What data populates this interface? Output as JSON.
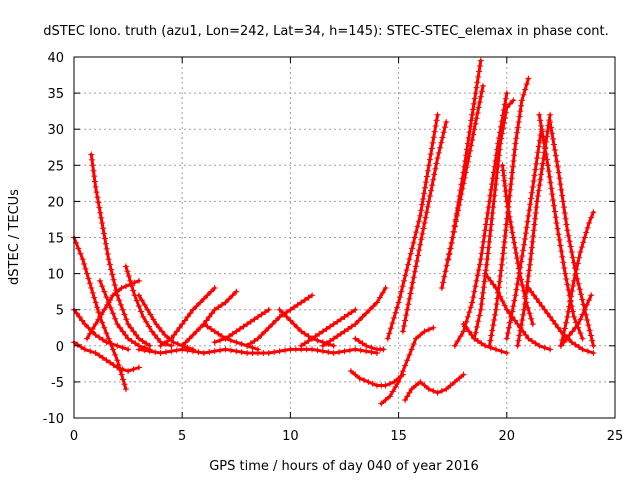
{
  "chart_data": {
    "type": "scatter",
    "title": "dSTEC Iono. truth (azu1, Lon=242, Lat=34, h=145): STEC-STEC_elemax in phase cont.",
    "xlabel": "GPS time / hours of day 040 of year 2016",
    "ylabel": "dSTEC  / TECUs",
    "xlim": [
      0,
      25
    ],
    "ylim": [
      -10,
      40
    ],
    "xticks": [
      0,
      5,
      10,
      15,
      20,
      25
    ],
    "yticks": [
      -10,
      -5,
      0,
      5,
      10,
      15,
      20,
      25,
      30,
      35,
      40
    ],
    "grid": true,
    "marker": "plus",
    "color": "#ff0000",
    "series": [
      {
        "x": [
          0.0,
          0.4,
          0.8,
          1.2,
          1.6,
          2.0,
          2.4
        ],
        "y": [
          15,
          12,
          8,
          4,
          1,
          -2,
          -6
        ]
      },
      {
        "x": [
          0.0,
          0.5,
          1.0,
          1.5,
          2.0,
          2.5
        ],
        "y": [
          5,
          3,
          1.5,
          0.5,
          0,
          -0.5
        ]
      },
      {
        "x": [
          0.0,
          0.5,
          1.0,
          1.5,
          2.0,
          2.5,
          3.0
        ],
        "y": [
          0.5,
          -0.5,
          -1,
          -2,
          -3,
          -3.5,
          -3
        ]
      },
      {
        "x": [
          0.6,
          1.0,
          1.4,
          1.8,
          2.2,
          2.6,
          3.0
        ],
        "y": [
          1,
          3,
          5,
          7,
          8,
          8.5,
          9
        ]
      },
      {
        "x": [
          0.8,
          1.0,
          1.3,
          1.6,
          2.0,
          2.5,
          3.0,
          3.5
        ],
        "y": [
          26.5,
          22,
          17,
          12,
          7,
          3,
          1,
          0
        ]
      },
      {
        "x": [
          1.2,
          1.6,
          2.0,
          2.5,
          3.0,
          3.5
        ],
        "y": [
          9,
          6,
          3,
          1,
          0,
          -0.5
        ]
      },
      {
        "x": [
          2.4,
          2.8,
          3.2,
          3.6,
          4.0,
          4.5
        ],
        "y": [
          11,
          7,
          4,
          2,
          0.5,
          0
        ]
      },
      {
        "x": [
          3.0,
          3.4,
          3.8,
          4.2,
          4.6,
          5.0,
          5.5
        ],
        "y": [
          7,
          5,
          3,
          1.5,
          0.5,
          0,
          -0.5
        ]
      },
      {
        "x": [
          3.0,
          4.0,
          5.0,
          6.0,
          7.0,
          8.0,
          9.0,
          10.0,
          11.0,
          12.0,
          13.0,
          14.0
        ],
        "y": [
          -0.5,
          -1,
          -0.5,
          -1,
          -0.5,
          -1,
          -1,
          -0.5,
          -0.5,
          -1,
          -0.5,
          -1
        ]
      },
      {
        "x": [
          4.0,
          4.5,
          5.0,
          5.5,
          6.0,
          6.5
        ],
        "y": [
          0,
          1,
          3,
          5,
          6.5,
          8
        ]
      },
      {
        "x": [
          5.0,
          5.5,
          6.0,
          6.5,
          7.0,
          7.5
        ],
        "y": [
          0,
          1.5,
          3,
          5,
          6,
          7.5
        ]
      },
      {
        "x": [
          6.5,
          7.0,
          7.5,
          8.0,
          8.5,
          9.0
        ],
        "y": [
          0.5,
          1,
          2,
          3,
          4,
          5
        ]
      },
      {
        "x": [
          6.0,
          6.5,
          7.0,
          7.5,
          8.0,
          8.5
        ],
        "y": [
          3,
          2,
          1,
          0.5,
          0,
          -0.5
        ]
      },
      {
        "x": [
          8.0,
          8.5,
          9.0,
          9.5,
          10.0,
          10.5,
          11.0
        ],
        "y": [
          0,
          1,
          2.5,
          4,
          5,
          6,
          7
        ]
      },
      {
        "x": [
          9.5,
          10.0,
          10.5,
          11.0,
          11.5,
          12.0
        ],
        "y": [
          5,
          3.5,
          2,
          1,
          0.5,
          0
        ]
      },
      {
        "x": [
          10.5,
          11.0,
          11.5,
          12.0,
          12.5,
          13.0
        ],
        "y": [
          0,
          1,
          2,
          3,
          4,
          5
        ]
      },
      {
        "x": [
          11.5,
          12.0,
          12.5,
          13.0,
          13.5,
          14.0,
          14.4
        ],
        "y": [
          0,
          1,
          2,
          3,
          4.5,
          6,
          8
        ]
      },
      {
        "x": [
          13.0,
          13.5,
          14.0,
          14.3
        ],
        "y": [
          1,
          0,
          -0.5,
          -0.5
        ]
      },
      {
        "x": [
          12.8,
          13.2,
          13.6,
          14.0,
          14.4,
          14.8,
          15.2
        ],
        "y": [
          -3.5,
          -4.5,
          -5,
          -5.5,
          -5.5,
          -5,
          -4
        ]
      },
      {
        "x": [
          14.2,
          14.6,
          15.0,
          15.4,
          15.8,
          16.2,
          16.6
        ],
        "y": [
          -8,
          -7,
          -5,
          -2,
          1,
          2,
          2.5
        ]
      },
      {
        "x": [
          15.3,
          15.6,
          16.0,
          16.4,
          16.8,
          17.2,
          17.6,
          18.0
        ],
        "y": [
          -7.5,
          -6,
          -5,
          -6,
          -6.5,
          -6,
          -5,
          -4
        ]
      },
      {
        "x": [
          14.5,
          15.0,
          15.5,
          16.0,
          16.4,
          16.8
        ],
        "y": [
          1,
          6,
          12,
          18,
          25,
          32
        ]
      },
      {
        "x": [
          15.2,
          15.6,
          16.0,
          16.4,
          16.8,
          17.2
        ],
        "y": [
          2,
          8,
          14,
          20,
          26,
          31
        ]
      },
      {
        "x": [
          17.0,
          17.5,
          18.0,
          18.4,
          18.8
        ],
        "y": [
          8,
          15,
          24,
          32,
          39.5
        ]
      },
      {
        "x": [
          17.3,
          17.7,
          18.1,
          18.5,
          18.9
        ],
        "y": [
          12,
          18,
          24,
          30,
          36
        ]
      },
      {
        "x": [
          17.6,
          18.0,
          18.4,
          18.8,
          19.2,
          19.6,
          20.0
        ],
        "y": [
          0,
          2,
          6,
          12,
          20,
          28,
          35
        ]
      },
      {
        "x": [
          18.5,
          18.8,
          19.1,
          19.4,
          19.7,
          20.0,
          20.3
        ],
        "y": [
          1,
          5,
          12,
          20,
          28,
          33,
          34
        ]
      },
      {
        "x": [
          19.2,
          19.5,
          19.8,
          20.1,
          20.4,
          20.7,
          21.0
        ],
        "y": [
          0,
          5,
          12,
          20,
          28,
          34,
          37
        ]
      },
      {
        "x": [
          19.8,
          20.0,
          20.3,
          20.6,
          20.9,
          21.2
        ],
        "y": [
          25,
          20,
          15,
          10,
          6,
          3
        ]
      },
      {
        "x": [
          20.0,
          20.4,
          20.8,
          21.2,
          21.6
        ],
        "y": [
          1,
          7,
          14,
          22,
          30
        ]
      },
      {
        "x": [
          20.5,
          20.8,
          21.1,
          21.4,
          21.7,
          22.0
        ],
        "y": [
          0,
          5,
          12,
          20,
          26,
          32
        ]
      },
      {
        "x": [
          21.5,
          21.9,
          22.3,
          22.7,
          23.1,
          23.5
        ],
        "y": [
          32,
          25,
          17,
          10,
          4,
          1
        ]
      },
      {
        "x": [
          22.0,
          22.4,
          22.8,
          23.2,
          23.6,
          24.0
        ],
        "y": [
          31,
          24,
          16,
          10,
          5,
          0
        ]
      },
      {
        "x": [
          21.0,
          21.5,
          22.0,
          22.5,
          23.0,
          23.5,
          24.0
        ],
        "y": [
          8,
          6,
          4,
          2,
          0.5,
          -0.5,
          -1
        ]
      },
      {
        "x": [
          22.5,
          22.8,
          23.1,
          23.4,
          23.8,
          24.0
        ],
        "y": [
          0,
          4,
          9,
          13,
          17,
          18.5
        ]
      },
      {
        "x": [
          19.0,
          19.5,
          20.0,
          20.5,
          21.0,
          21.5,
          22.0
        ],
        "y": [
          10,
          8,
          5,
          3,
          1,
          0,
          -0.5
        ]
      },
      {
        "x": [
          22.5,
          22.9,
          23.3,
          23.6,
          23.9
        ],
        "y": [
          0,
          1.5,
          3,
          5,
          7
        ]
      },
      {
        "x": [
          18.0,
          18.5,
          19.0,
          19.5,
          20.0
        ],
        "y": [
          3,
          1,
          0,
          -0.5,
          -1
        ]
      }
    ]
  }
}
